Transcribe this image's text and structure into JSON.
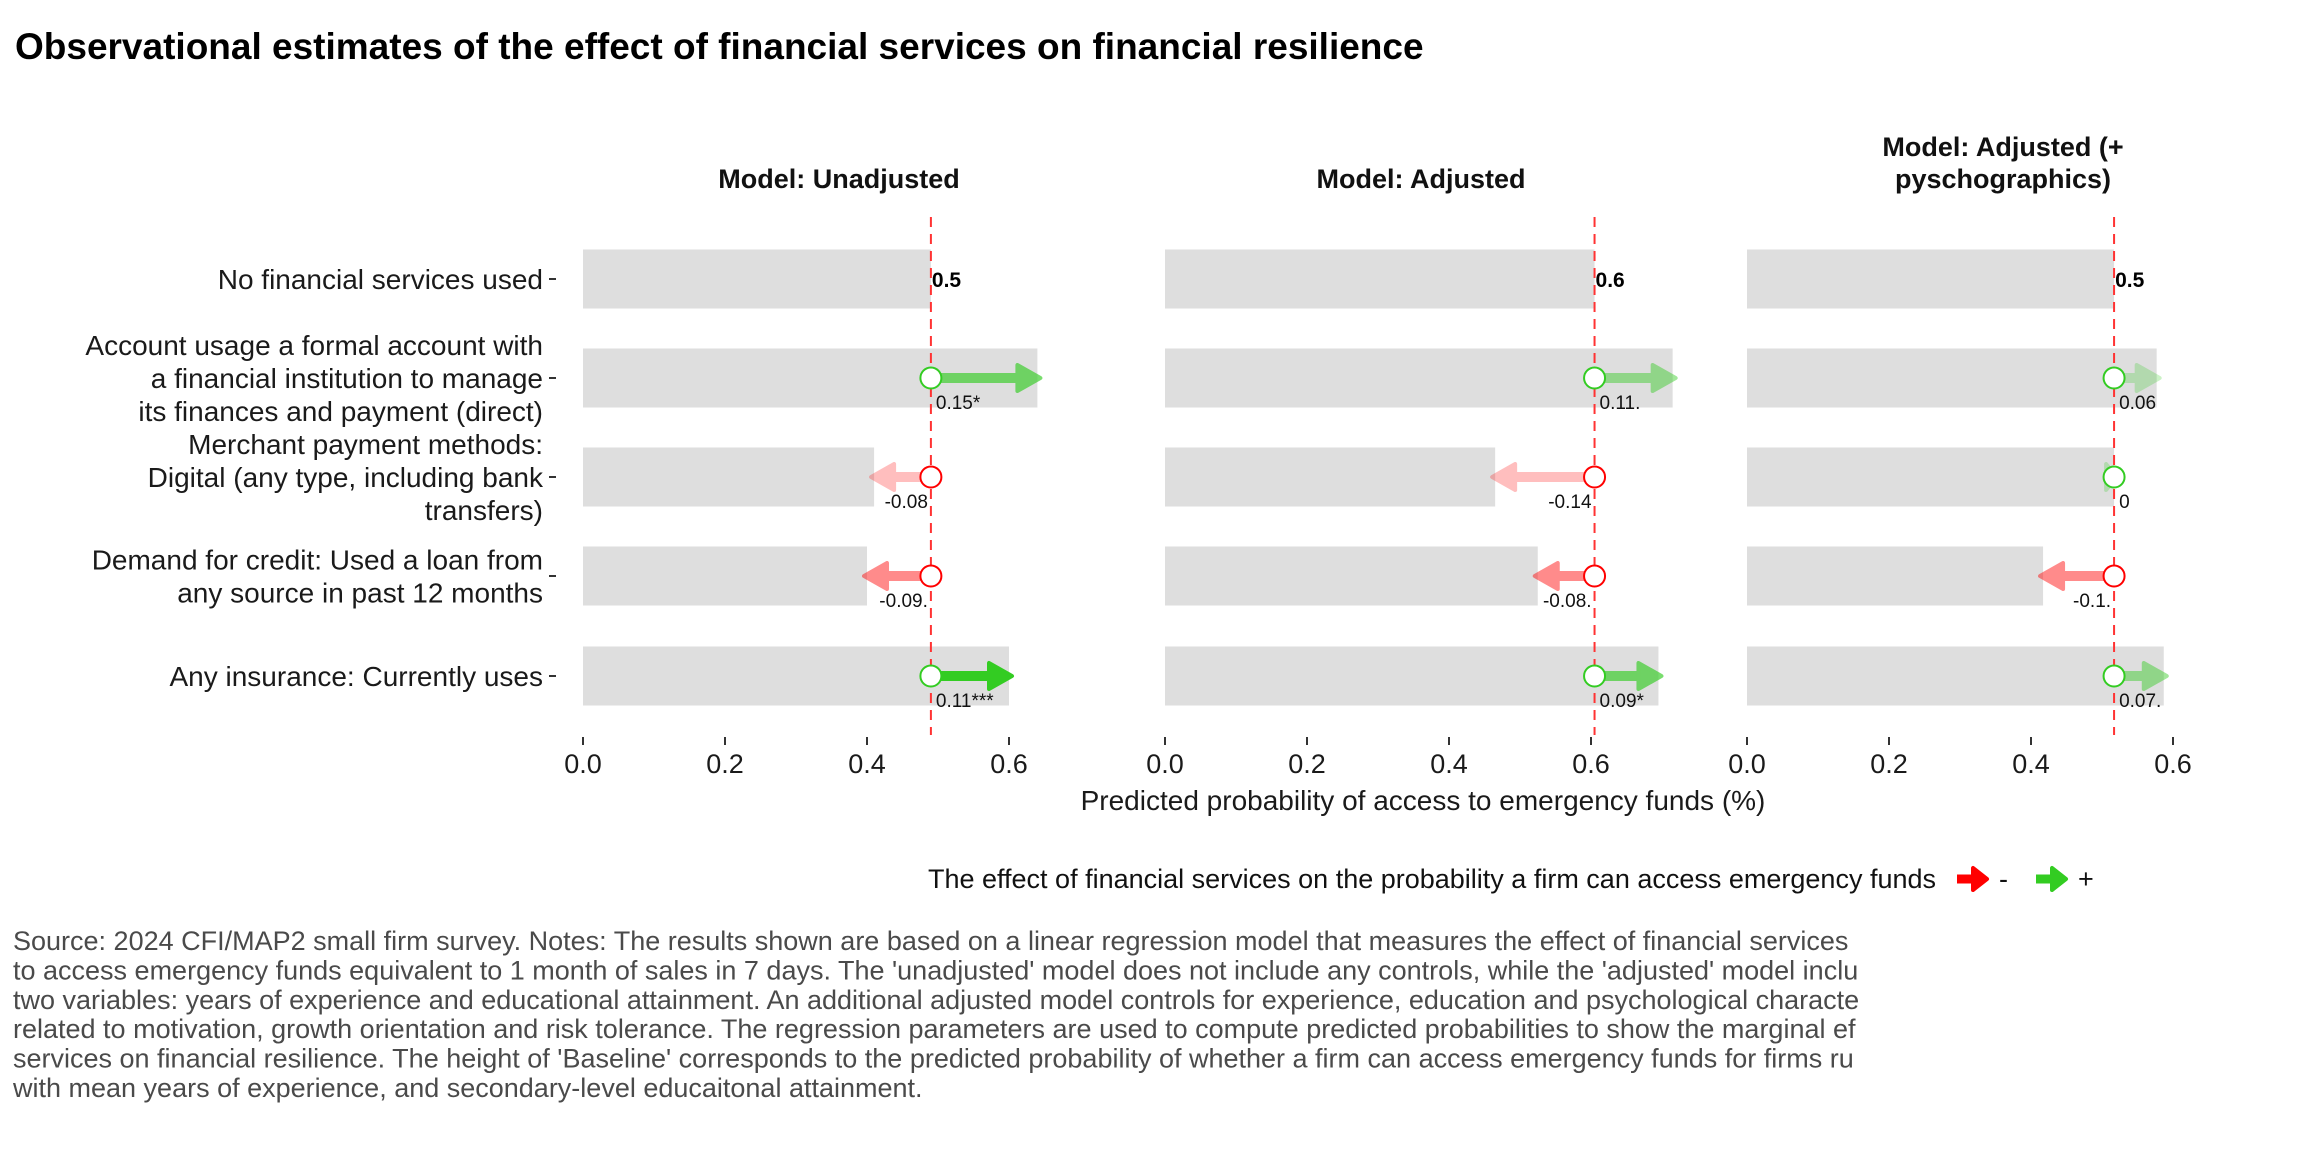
{
  "title": "Observational estimates of the effect of financial services on financial resilience",
  "chart_data": {
    "type": "bar",
    "subtype": "horizontal bar with effect arrows (faceted)",
    "categories": [
      [
        "No financial services used"
      ],
      [
        "Account usage a formal account with",
        "a financial institution to manage",
        "its finances and payment (direct)"
      ],
      [
        "Merchant payment methods:",
        "Digital (any type, including bank",
        "transfers)"
      ],
      [
        "Demand for credit: Used a loan from",
        "any source in past 12 months"
      ],
      [
        "Any insurance: Currently uses"
      ]
    ],
    "xlabel": "Predicted probability of access to emergency funds (%)",
    "xlim": [
      0,
      0.7
    ],
    "xticks": [
      "0.0",
      "0.2",
      "0.4",
      "0.6"
    ],
    "grid": false,
    "baseline_line": "dashed red vertical line at baseline",
    "panels": [
      {
        "title": [
          "Model: Unadjusted"
        ],
        "baseline": 0.49,
        "baseline_label": "0.5",
        "effects": [
          {
            "value": 0.15,
            "label": "0.15*"
          },
          {
            "value": -0.08,
            "label": "-0.08"
          },
          {
            "value": -0.09,
            "label": "-0.09."
          },
          {
            "value": 0.11,
            "label": "0.11***"
          }
        ]
      },
      {
        "title": [
          "Model: Adjusted"
        ],
        "baseline": 0.605,
        "baseline_label": "0.6",
        "effects": [
          {
            "value": 0.11,
            "label": "0.11."
          },
          {
            "value": -0.14,
            "label": "-0.14"
          },
          {
            "value": -0.08,
            "label": "-0.08."
          },
          {
            "value": 0.09,
            "label": "0.09*"
          }
        ]
      },
      {
        "title": [
          "Model: Adjusted (+",
          "pyschographics)"
        ],
        "baseline": 0.517,
        "baseline_label": "0.5",
        "effects": [
          {
            "value": 0.06,
            "label": "0.06"
          },
          {
            "value": 0,
            "label": "0"
          },
          {
            "value": -0.1,
            "label": "-0.1."
          },
          {
            "value": 0.07,
            "label": "0.07."
          }
        ]
      }
    ],
    "legend": {
      "title": "The effect of financial services on the probability a firm can access emergency funds",
      "items": [
        {
          "label": "-",
          "color": "#ff0000"
        },
        {
          "label": "+",
          "color": "#33cc22"
        }
      ],
      "placement": "bottom"
    },
    "colors": {
      "bar": "#dedede",
      "positive": "#33cc22",
      "negative": "#ff0000",
      "baseline_line": "#ff3333"
    }
  },
  "caption": [
    "Source: 2024 CFI/MAP2 small firm survey. Notes: The results shown are based on a linear regression model that measures the effect of financial services",
    "to access emergency funds equivalent to 1 month of sales in 7 days. The 'unadjusted' model does not include any controls, while the 'adjusted' model inclu",
    "two variables: years of experience and educational attainment. An additional adjusted model controls for experience, education and psychological characte",
    "related to motivation, growth orientation and risk tolerance. The regression parameters are used to compute predicted probabilities to show the marginal ef",
    "services on financial resilience. The height of 'Baseline' corresponds to the predicted probability of whether a firm can access emergency funds for firms ru",
    "with mean years of experience, and secondary-level educaitonal attainment."
  ]
}
